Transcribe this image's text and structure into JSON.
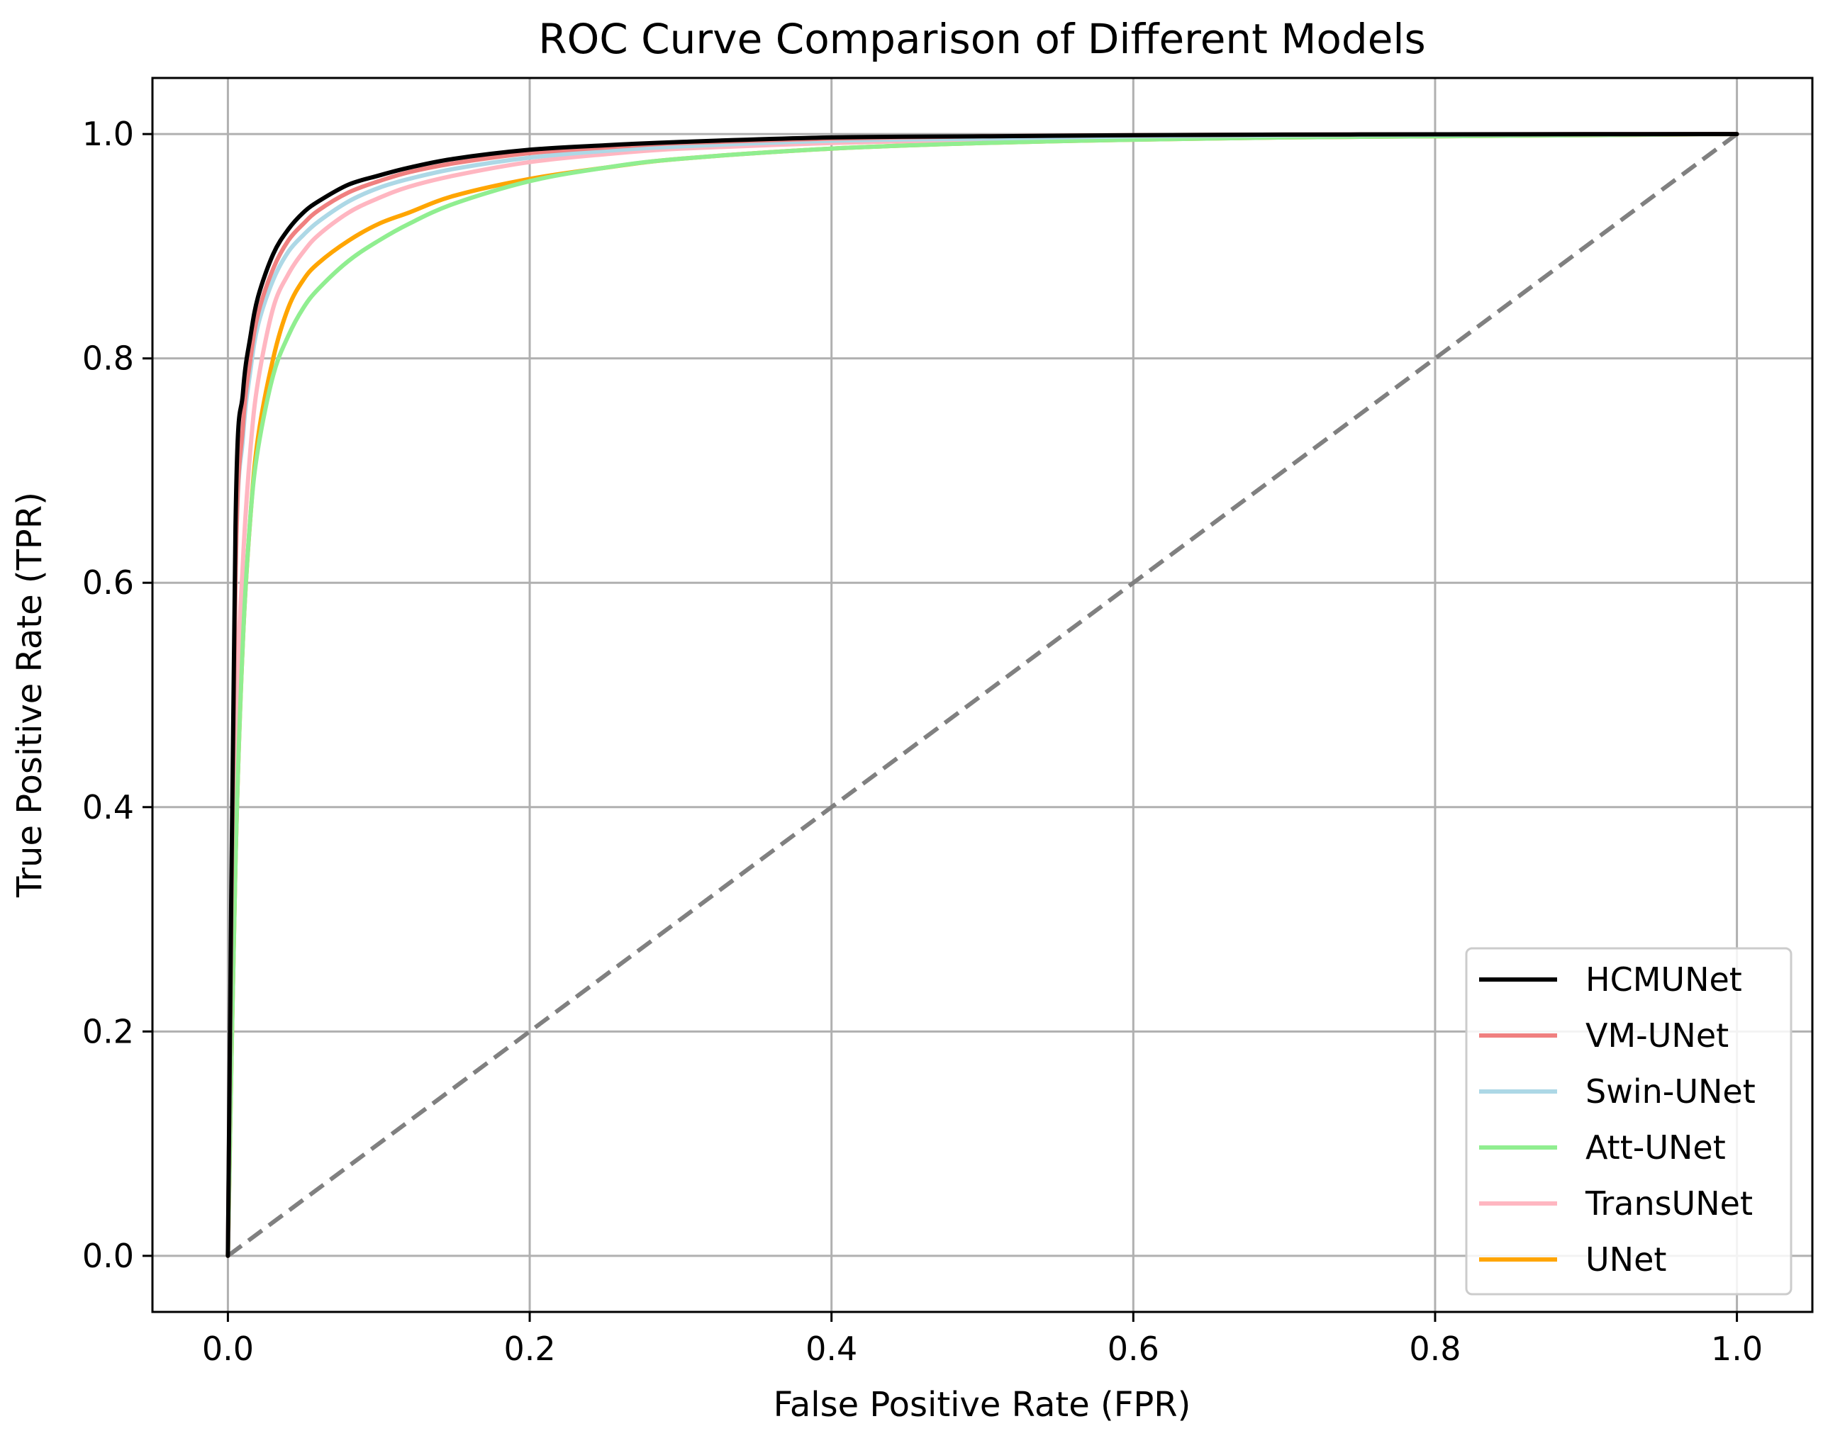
{
  "chart_data": {
    "type": "line",
    "title": "ROC Curve Comparison of Different Models",
    "xlabel": "False Positive Rate (FPR)",
    "ylabel": "True Positive Rate (TPR)",
    "xlim": [
      -0.05,
      1.05
    ],
    "ylim": [
      -0.05,
      1.05
    ],
    "grid": true,
    "legend_position": "lower-right",
    "xticks": [
      {
        "value": 0.0,
        "label": "0.0"
      },
      {
        "value": 0.2,
        "label": "0.2"
      },
      {
        "value": 0.4,
        "label": "0.4"
      },
      {
        "value": 0.6,
        "label": "0.6"
      },
      {
        "value": 0.8,
        "label": "0.8"
      },
      {
        "value": 1.0,
        "label": "1.0"
      }
    ],
    "yticks": [
      {
        "value": 0.0,
        "label": "0.0"
      },
      {
        "value": 0.2,
        "label": "0.2"
      },
      {
        "value": 0.4,
        "label": "0.4"
      },
      {
        "value": 0.6,
        "label": "0.6"
      },
      {
        "value": 0.8,
        "label": "0.8"
      },
      {
        "value": 1.0,
        "label": "1.0"
      }
    ],
    "reference_line": {
      "x": [
        0,
        1
      ],
      "y": [
        0,
        1
      ],
      "color": "#808080",
      "style": "dashed"
    },
    "series": [
      {
        "name": "UNet",
        "color": "#ffa500",
        "x": [
          0,
          0.005,
          0.01,
          0.015,
          0.02,
          0.03,
          0.04,
          0.05,
          0.06,
          0.08,
          0.1,
          0.12,
          0.15,
          0.2,
          0.25,
          0.3,
          0.4,
          0.5,
          0.6,
          0.7,
          0.8,
          0.9,
          1.0
        ],
        "y": [
          0,
          0.35,
          0.55,
          0.66,
          0.73,
          0.8,
          0.845,
          0.87,
          0.885,
          0.905,
          0.92,
          0.93,
          0.945,
          0.96,
          0.97,
          0.978,
          0.987,
          0.992,
          0.995,
          0.997,
          0.998,
          0.999,
          1.0
        ]
      },
      {
        "name": "TransUNet",
        "color": "#ffb6c1",
        "x": [
          0,
          0.005,
          0.01,
          0.015,
          0.02,
          0.03,
          0.04,
          0.05,
          0.06,
          0.08,
          0.1,
          0.12,
          0.15,
          0.2,
          0.25,
          0.3,
          0.4,
          0.5,
          0.6,
          0.7,
          0.8,
          0.9,
          1.0
        ],
        "y": [
          0,
          0.45,
          0.62,
          0.72,
          0.78,
          0.845,
          0.875,
          0.895,
          0.91,
          0.93,
          0.943,
          0.953,
          0.963,
          0.975,
          0.982,
          0.987,
          0.992,
          0.995,
          0.997,
          0.998,
          0.999,
          0.9995,
          1.0
        ]
      },
      {
        "name": "Att-UNet",
        "color": "#90ee90",
        "x": [
          0,
          0.005,
          0.01,
          0.015,
          0.02,
          0.03,
          0.04,
          0.05,
          0.06,
          0.08,
          0.1,
          0.12,
          0.15,
          0.2,
          0.25,
          0.3,
          0.4,
          0.5,
          0.6,
          0.7,
          0.8,
          0.9,
          1.0
        ],
        "y": [
          0,
          0.35,
          0.55,
          0.66,
          0.72,
          0.785,
          0.82,
          0.845,
          0.862,
          0.887,
          0.905,
          0.92,
          0.938,
          0.958,
          0.97,
          0.978,
          0.987,
          0.992,
          0.995,
          0.997,
          0.998,
          0.999,
          1.0
        ]
      },
      {
        "name": "Swin-UNet",
        "color": "#add8e6",
        "x": [
          0,
          0.005,
          0.01,
          0.015,
          0.02,
          0.03,
          0.04,
          0.05,
          0.06,
          0.08,
          0.1,
          0.12,
          0.15,
          0.2,
          0.25,
          0.3,
          0.4,
          0.5,
          0.6,
          0.7,
          0.8,
          0.9,
          1.0
        ],
        "y": [
          0,
          0.6,
          0.73,
          0.79,
          0.83,
          0.87,
          0.895,
          0.91,
          0.922,
          0.94,
          0.952,
          0.96,
          0.969,
          0.979,
          0.985,
          0.989,
          0.994,
          0.996,
          0.998,
          0.999,
          0.9995,
          0.9998,
          1.0
        ]
      },
      {
        "name": "VM-UNet",
        "color": "#f08080",
        "x": [
          0,
          0.005,
          0.01,
          0.015,
          0.02,
          0.03,
          0.04,
          0.05,
          0.06,
          0.08,
          0.1,
          0.12,
          0.15,
          0.2,
          0.25,
          0.3,
          0.4,
          0.5,
          0.6,
          0.7,
          0.8,
          0.9,
          1.0
        ],
        "y": [
          0,
          0.6,
          0.74,
          0.8,
          0.84,
          0.88,
          0.905,
          0.92,
          0.932,
          0.948,
          0.958,
          0.966,
          0.974,
          0.983,
          0.988,
          0.992,
          0.996,
          0.998,
          0.999,
          0.9995,
          0.9998,
          0.9999,
          1.0
        ]
      },
      {
        "name": "HCMUNet",
        "color": "#000000",
        "x": [
          0,
          0.005,
          0.01,
          0.015,
          0.02,
          0.03,
          0.04,
          0.05,
          0.06,
          0.08,
          0.1,
          0.12,
          0.15,
          0.2,
          0.25,
          0.3,
          0.4,
          0.5,
          0.6,
          0.7,
          0.8,
          0.9,
          1.0
        ],
        "y": [
          0,
          0.65,
          0.77,
          0.82,
          0.855,
          0.893,
          0.915,
          0.93,
          0.94,
          0.955,
          0.963,
          0.97,
          0.978,
          0.986,
          0.99,
          0.993,
          0.997,
          0.998,
          0.999,
          0.9995,
          0.9998,
          0.9999,
          1.0
        ]
      }
    ],
    "legend": [
      {
        "name": "HCMUNet",
        "color": "#000000"
      },
      {
        "name": "VM-UNet",
        "color": "#f08080"
      },
      {
        "name": "Swin-UNet",
        "color": "#add8e6"
      },
      {
        "name": "Att-UNet",
        "color": "#90ee90"
      },
      {
        "name": "TransUNet",
        "color": "#ffb6c1"
      },
      {
        "name": "UNet",
        "color": "#ffa500"
      }
    ]
  }
}
